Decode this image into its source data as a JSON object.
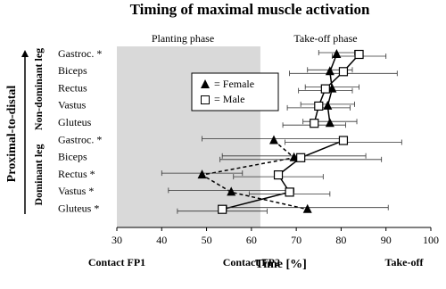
{
  "chart_data": {
    "type": "dot-error",
    "title": "Timing of maximal muscle activation",
    "xlabel": "Time [%]",
    "ylabel": "Proximal-to-distal",
    "group_labels": [
      "Non-dominant leg",
      "Dominant leg"
    ],
    "phase_labels": [
      "Planting phase",
      "Take-off phase"
    ],
    "x_annotations": [
      {
        "value": 30,
        "label": "Contact FP1"
      },
      {
        "value": 60,
        "label": "Contact FP2"
      },
      {
        "value": 100,
        "label": "Take-off"
      }
    ],
    "categories": [
      "Gastroc. *",
      "Biceps",
      "Rectus",
      "Vastus",
      "Gluteus",
      "Gastroc. *",
      "Biceps",
      "Rectus *",
      "Vastus *",
      "Gluteus *"
    ],
    "series": [
      {
        "name": "= Female",
        "color": "#000000",
        "marker": "triangle",
        "values": [
          79,
          77.5,
          78,
          77,
          77.5,
          65,
          69.5,
          49,
          55.5,
          72.5
        ],
        "errors": [
          4,
          5,
          6,
          6,
          6,
          16,
          16,
          9,
          14,
          18
        ]
      },
      {
        "name": "= Male",
        "color": "#000000",
        "marker": "square",
        "values": [
          84,
          80.5,
          76.5,
          75,
          74,
          80.5,
          71,
          66,
          68.5,
          53.5
        ],
        "errors": [
          6,
          12,
          6,
          7,
          7,
          13,
          18,
          10,
          9,
          10
        ]
      }
    ],
    "xlim": [
      30,
      100
    ],
    "xticks": [
      30,
      40,
      50,
      60,
      70,
      80,
      90,
      100
    ],
    "shade_xlim": [
      30,
      62
    ]
  }
}
